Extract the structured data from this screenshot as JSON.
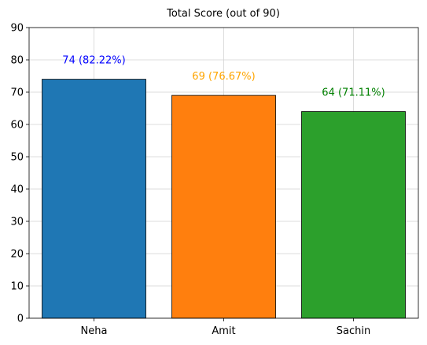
{
  "chart_data": {
    "type": "bar",
    "title": "Total Score (out of 90)",
    "xlabel": "",
    "ylabel": "",
    "categories": [
      "Neha",
      "Amit",
      "Sachin"
    ],
    "values": [
      74,
      69,
      64
    ],
    "colors": [
      "#1f77b4",
      "#ff7f0e",
      "#2ca02c"
    ],
    "label_colors": [
      "#0000ff",
      "#ffa500",
      "#008000"
    ],
    "data_labels": [
      "74 (82.22%)",
      "69 (76.67%)",
      "64 (71.11%)"
    ],
    "ylim": [
      0,
      90
    ],
    "yticks": [
      0,
      10,
      20,
      30,
      40,
      50,
      60,
      70,
      80,
      90
    ],
    "grid": true,
    "legend": "none"
  }
}
